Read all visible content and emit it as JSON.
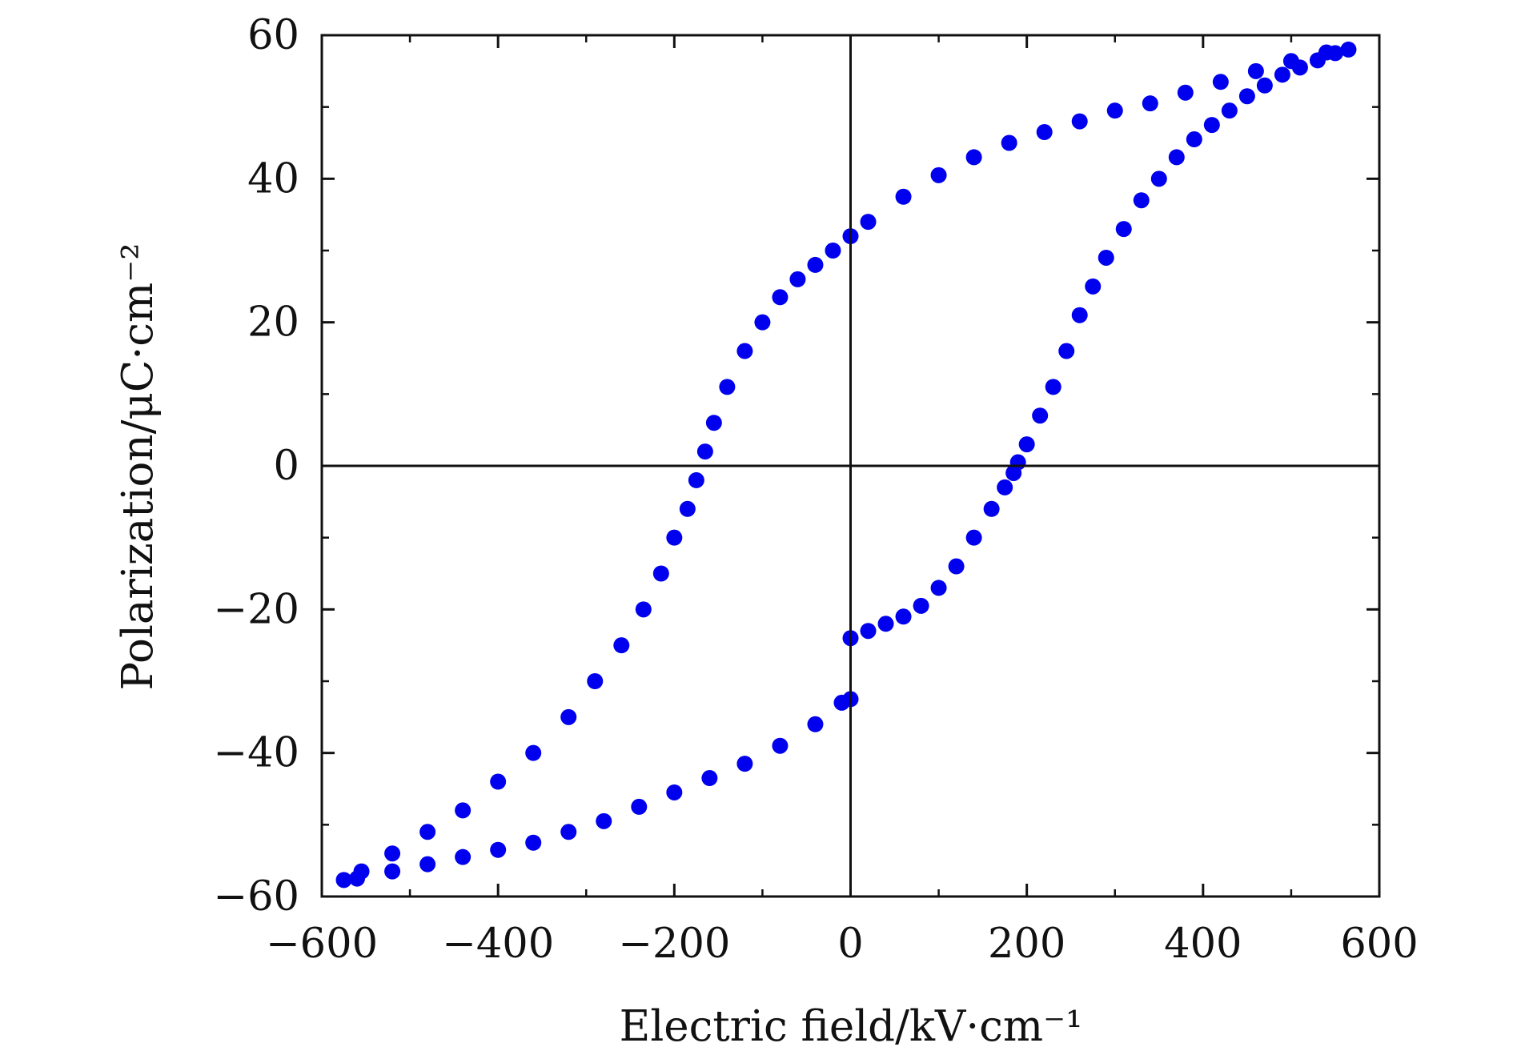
{
  "chart_data": {
    "type": "scatter",
    "title": "",
    "xlabel": "Electric field/kV·cm⁻¹",
    "ylabel": "Polarization/μC·cm⁻²",
    "xlim": [
      -600,
      600
    ],
    "ylim": [
      -60,
      60
    ],
    "xticks": [
      -600,
      -400,
      -200,
      0,
      200,
      400,
      600
    ],
    "xtick_labels": [
      "−600",
      "−400",
      "−200",
      "0",
      "200",
      "400",
      "600"
    ],
    "yticks": [
      -60,
      -40,
      -20,
      0,
      20,
      40,
      60
    ],
    "ytick_labels": [
      "−60",
      "−40",
      "−20",
      "0",
      "20",
      "40",
      "60"
    ],
    "grid": false,
    "legend": "none",
    "zero_lines": true,
    "marker_color": "#0000ee",
    "series": [
      {
        "points": [
          [
            0,
            -24
          ],
          [
            20,
            -23
          ],
          [
            40,
            -22
          ],
          [
            60,
            -21
          ],
          [
            80,
            -19.5
          ],
          [
            100,
            -17
          ],
          [
            120,
            -14
          ],
          [
            140,
            -10
          ],
          [
            160,
            -6
          ],
          [
            175,
            -3
          ],
          [
            185,
            -1
          ],
          [
            190,
            0.5
          ],
          [
            200,
            3
          ],
          [
            215,
            7
          ],
          [
            230,
            11
          ],
          [
            245,
            16
          ],
          [
            260,
            21
          ],
          [
            275,
            25
          ],
          [
            290,
            29
          ],
          [
            310,
            33
          ],
          [
            330,
            37
          ],
          [
            350,
            40
          ],
          [
            370,
            43
          ],
          [
            390,
            45.5
          ],
          [
            410,
            47.5
          ],
          [
            430,
            49.5
          ],
          [
            450,
            51.5
          ],
          [
            470,
            53
          ],
          [
            490,
            54.5
          ],
          [
            510,
            55.5
          ],
          [
            530,
            56.5
          ],
          [
            550,
            57.5
          ],
          [
            565,
            58
          ],
          [
            540,
            57.6
          ],
          [
            500,
            56.4
          ],
          [
            460,
            55
          ],
          [
            420,
            53.5
          ],
          [
            380,
            52
          ],
          [
            340,
            50.5
          ],
          [
            300,
            49.5
          ],
          [
            260,
            48
          ],
          [
            220,
            46.5
          ],
          [
            180,
            45
          ],
          [
            140,
            43
          ],
          [
            100,
            40.5
          ],
          [
            60,
            37.5
          ],
          [
            20,
            34
          ],
          [
            0,
            32
          ],
          [
            -20,
            30
          ],
          [
            -40,
            28
          ],
          [
            -60,
            26
          ],
          [
            -80,
            23.5
          ],
          [
            -100,
            20
          ],
          [
            -120,
            16
          ],
          [
            -140,
            11
          ],
          [
            -155,
            6
          ],
          [
            -165,
            2
          ],
          [
            -175,
            -2
          ],
          [
            -185,
            -6
          ],
          [
            -200,
            -10
          ],
          [
            -215,
            -15
          ],
          [
            -235,
            -20
          ],
          [
            -260,
            -25
          ],
          [
            -290,
            -30
          ],
          [
            -320,
            -35
          ],
          [
            -360,
            -40
          ],
          [
            -400,
            -44
          ],
          [
            -440,
            -48
          ],
          [
            -480,
            -51
          ],
          [
            -520,
            -54
          ],
          [
            -555,
            -56.5
          ],
          [
            -575,
            -57.7
          ],
          [
            -560,
            -57.5
          ],
          [
            -520,
            -56.5
          ],
          [
            -480,
            -55.5
          ],
          [
            -440,
            -54.5
          ],
          [
            -400,
            -53.5
          ],
          [
            -360,
            -52.5
          ],
          [
            -320,
            -51
          ],
          [
            -280,
            -49.5
          ],
          [
            -240,
            -47.5
          ],
          [
            -200,
            -45.5
          ],
          [
            -160,
            -43.5
          ],
          [
            -120,
            -41.5
          ],
          [
            -80,
            -39
          ],
          [
            -40,
            -36
          ],
          [
            -10,
            -33
          ],
          [
            0,
            -32.5
          ]
        ]
      }
    ]
  }
}
